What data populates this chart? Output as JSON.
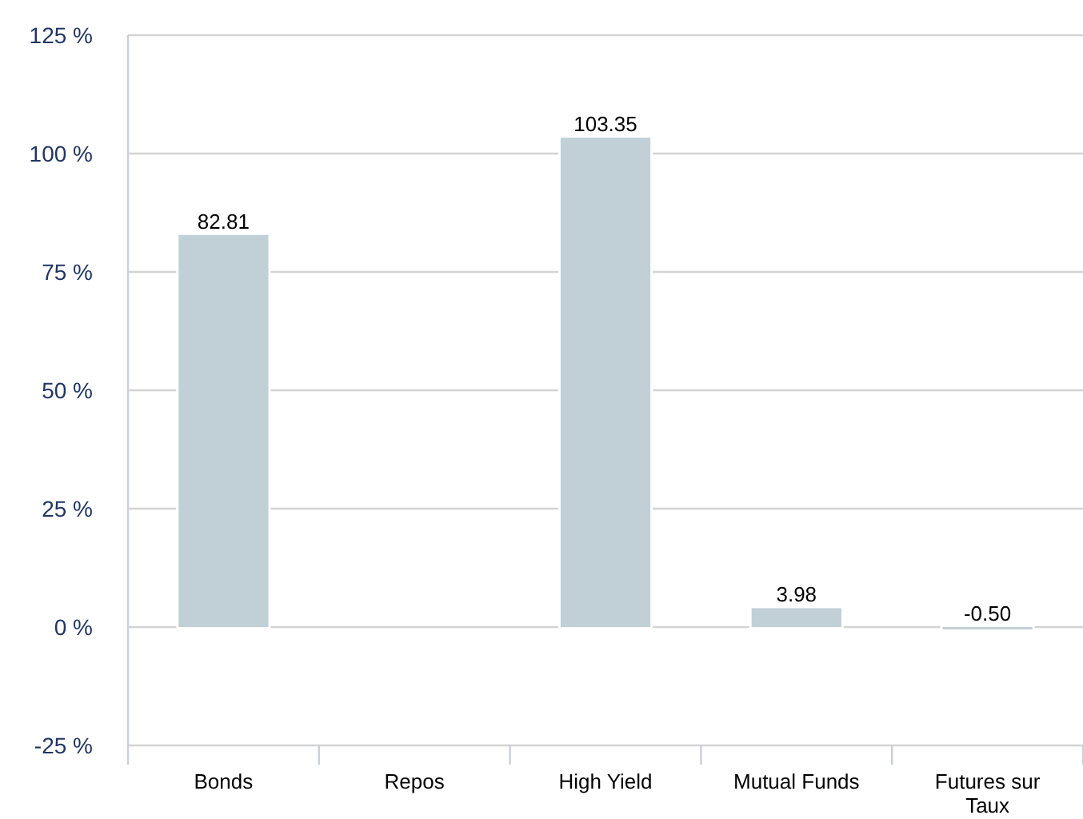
{
  "chart_data": {
    "type": "bar",
    "categories": [
      "Bonds",
      "Repos",
      "High Yield",
      "Mutual Funds",
      "Futures sur Taux"
    ],
    "values": [
      82.81,
      null,
      103.35,
      3.98,
      -0.5
    ],
    "value_labels": [
      "82.81",
      null,
      "103.35",
      "3.98",
      "-0.50"
    ],
    "color": "#c1d0d7",
    "ylim": [
      -25,
      125
    ],
    "yticks": [
      {
        "value": -25,
        "label": "-25 %"
      },
      {
        "value": 0,
        "label": "0 %"
      },
      {
        "value": 25,
        "label": "25 %"
      },
      {
        "value": 50,
        "label": "50 %"
      },
      {
        "value": 75,
        "label": "75 %"
      },
      {
        "value": 100,
        "label": "100 %"
      },
      {
        "value": 125,
        "label": "125 %"
      }
    ],
    "grid": "y"
  }
}
